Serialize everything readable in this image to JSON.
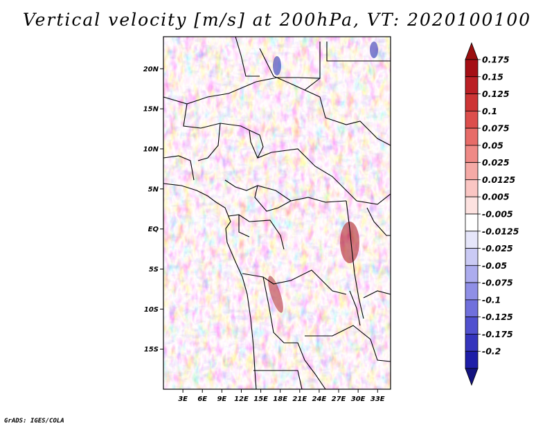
{
  "title": "Vertical velocity [m/s] at 200hPa, VT: 2020100100",
  "credit": "GrADS: IGES/COLA",
  "map": {
    "region": "Central Africa",
    "lon_range": [
      0,
      35
    ],
    "lat_range": [
      -20,
      24
    ],
    "lat_ticks": [
      {
        "lat": 20,
        "label": "20N"
      },
      {
        "lat": 15,
        "label": "15N"
      },
      {
        "lat": 10,
        "label": "10N"
      },
      {
        "lat": 5,
        "label": "5N"
      },
      {
        "lat": 0,
        "label": "EQ"
      },
      {
        "lat": -5,
        "label": "5S"
      },
      {
        "lat": -10,
        "label": "10S"
      },
      {
        "lat": -15,
        "label": "15S"
      }
    ],
    "lon_ticks": [
      {
        "lon": 3,
        "label": "3E"
      },
      {
        "lon": 6,
        "label": "6E"
      },
      {
        "lon": 9,
        "label": "9E"
      },
      {
        "lon": 12,
        "label": "12E"
      },
      {
        "lon": 15,
        "label": "15E"
      },
      {
        "lon": 18,
        "label": "18E"
      },
      {
        "lon": 21,
        "label": "21E"
      },
      {
        "lon": 24,
        "label": "24E"
      },
      {
        "lon": 27,
        "label": "27E"
      },
      {
        "lon": 30,
        "label": "30E"
      },
      {
        "lon": 33,
        "label": "33E"
      }
    ]
  },
  "colorbar": {
    "levels": [
      {
        "label": "0.175",
        "color": "#a50f15"
      },
      {
        "label": "0.15",
        "color": "#bb2025"
      },
      {
        "label": "0.125",
        "color": "#cd3535"
      },
      {
        "label": "0.1",
        "color": "#dc4e4c"
      },
      {
        "label": "0.075",
        "color": "#e76c68"
      },
      {
        "label": "0.05",
        "color": "#ef8a86"
      },
      {
        "label": "0.025",
        "color": "#f5aaa6"
      },
      {
        "label": "0.0125",
        "color": "#fac6c3"
      },
      {
        "label": "0.005",
        "color": "#fde2e0"
      },
      {
        "label": "-0.005",
        "color": "#ffffff"
      },
      {
        "label": "-0.0125",
        "color": "#e6e6fa"
      },
      {
        "label": "-0.025",
        "color": "#cacaf4"
      },
      {
        "label": "-0.05",
        "color": "#acacee"
      },
      {
        "label": "-0.075",
        "color": "#8f8fe6"
      },
      {
        "label": "-0.1",
        "color": "#7070dc"
      },
      {
        "label": "-0.125",
        "color": "#5151cf"
      },
      {
        "label": "-0.175",
        "color": "#3535bd"
      },
      {
        "label": "-0.2",
        "color": "#1e1ea8"
      }
    ],
    "top_arrow_color": "#9b1010",
    "bottom_arrow_color": "#13137f"
  }
}
